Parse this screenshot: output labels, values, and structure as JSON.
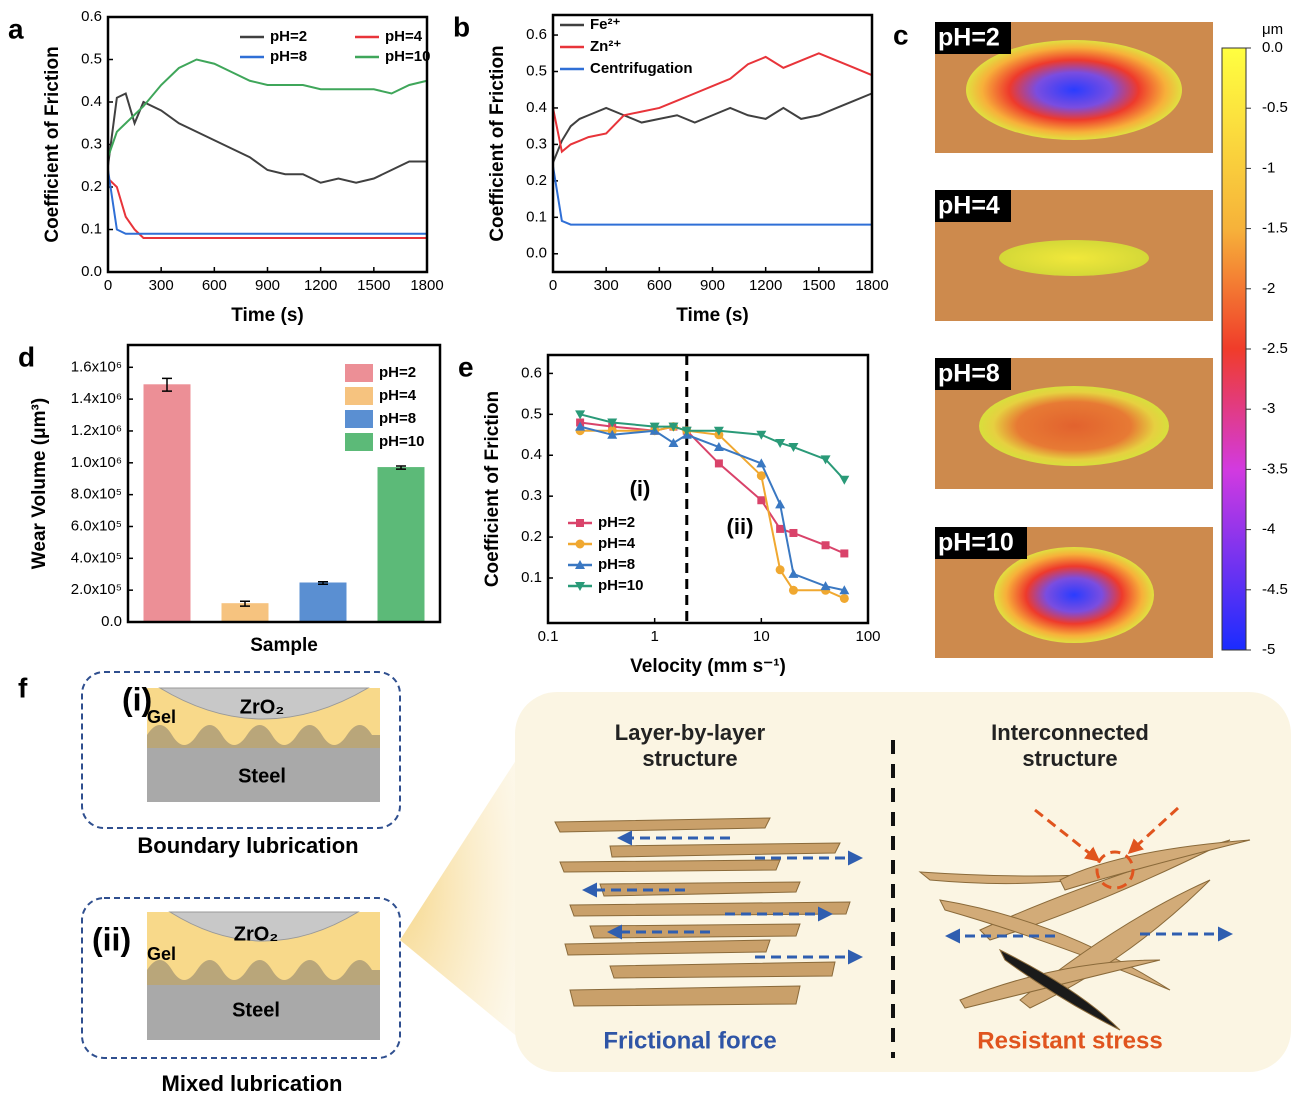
{
  "chart_data": [
    {
      "type": "line",
      "panel": "a",
      "xlabel": "Time (s)",
      "ylabel": "Coefficient  of Friction",
      "xlim": [
        0,
        1800
      ],
      "ylim": [
        0,
        0.6
      ],
      "xticks": [
        0,
        300,
        600,
        900,
        1200,
        1500,
        1800
      ],
      "yticks": [
        {
          "value": 0,
          "label": "0.0"
        },
        0.1,
        0.2,
        0.3,
        0.4,
        0.5,
        0.6
      ],
      "x": [
        0,
        50,
        100,
        150,
        200,
        300,
        400,
        500,
        600,
        700,
        800,
        900,
        1000,
        1100,
        1200,
        1300,
        1400,
        1500,
        1600,
        1700,
        1800
      ],
      "series": [
        {
          "name": "pH=2",
          "color": "#404040",
          "values": [
            0.25,
            0.41,
            0.42,
            0.35,
            0.4,
            0.38,
            0.35,
            0.33,
            0.31,
            0.29,
            0.27,
            0.24,
            0.23,
            0.23,
            0.21,
            0.22,
            0.21,
            0.22,
            0.24,
            0.26,
            0.26
          ]
        },
        {
          "name": "pH=4",
          "color": "#e8343a",
          "values": [
            0.22,
            0.2,
            0.13,
            0.1,
            0.08,
            0.08,
            0.08,
            0.08,
            0.08,
            0.08,
            0.08,
            0.08,
            0.08,
            0.08,
            0.08,
            0.08,
            0.08,
            0.08,
            0.08,
            0.08,
            0.08
          ]
        },
        {
          "name": "pH=8",
          "color": "#2f6fd6",
          "values": [
            0.24,
            0.1,
            0.09,
            0.09,
            0.09,
            0.09,
            0.09,
            0.09,
            0.09,
            0.09,
            0.09,
            0.09,
            0.09,
            0.09,
            0.09,
            0.09,
            0.09,
            0.09,
            0.09,
            0.09,
            0.09
          ]
        },
        {
          "name": "pH=10",
          "color": "#3fa65a",
          "values": [
            0.27,
            0.33,
            0.35,
            0.37,
            0.39,
            0.44,
            0.48,
            0.5,
            0.49,
            0.47,
            0.45,
            0.44,
            0.44,
            0.44,
            0.43,
            0.43,
            0.43,
            0.43,
            0.42,
            0.44,
            0.45
          ]
        }
      ]
    },
    {
      "type": "line",
      "panel": "b",
      "xlabel": "Time (s)",
      "ylabel": "Coefficient  of Friction",
      "xlim": [
        0,
        1800
      ],
      "ylim": [
        -0.05,
        0.655
      ],
      "xticks": [
        0,
        300,
        600,
        900,
        1200,
        1500,
        1800
      ],
      "yticks": [
        {
          "value": 0,
          "label": "0.0"
        },
        0.1,
        0.2,
        0.3,
        0.4,
        0.5,
        0.6
      ],
      "x": [
        0,
        50,
        100,
        150,
        200,
        300,
        400,
        500,
        600,
        700,
        800,
        900,
        1000,
        1100,
        1200,
        1300,
        1400,
        1500,
        1600,
        1700,
        1800
      ],
      "series": [
        {
          "name": "Fe²⁺",
          "color": "#404040",
          "values": [
            0.25,
            0.31,
            0.35,
            0.37,
            0.38,
            0.4,
            0.38,
            0.36,
            0.37,
            0.38,
            0.36,
            0.38,
            0.4,
            0.38,
            0.37,
            0.4,
            0.37,
            0.38,
            0.4,
            0.42,
            0.44
          ]
        },
        {
          "name": "Zn²⁺",
          "color": "#e8343a",
          "values": [
            0.4,
            0.28,
            0.3,
            0.31,
            0.32,
            0.33,
            0.38,
            0.39,
            0.4,
            0.42,
            0.44,
            0.46,
            0.48,
            0.52,
            0.54,
            0.51,
            0.53,
            0.55,
            0.53,
            0.51,
            0.49
          ]
        },
        {
          "name": "Centrifugation",
          "color": "#2f6fd6",
          "values": [
            0.24,
            0.09,
            0.08,
            0.08,
            0.08,
            0.08,
            0.08,
            0.08,
            0.08,
            0.08,
            0.08,
            0.08,
            0.08,
            0.08,
            0.08,
            0.08,
            0.08,
            0.08,
            0.08,
            0.08,
            0.08
          ]
        }
      ]
    },
    {
      "type": "bar",
      "panel": "d",
      "xlabel": "Sample",
      "ylabel": "Wear Volume (μm³)",
      "ylim": [
        0,
        1740000
      ],
      "yticks": [
        {
          "value": 0,
          "label": "0.0"
        },
        {
          "value": 200000,
          "label": "2.0x10⁵"
        },
        {
          "value": 400000,
          "label": "4.0x10⁵"
        },
        {
          "value": 600000,
          "label": "6.0x10⁵"
        },
        {
          "value": 800000,
          "label": "8.0x10⁵"
        },
        {
          "value": 1000000,
          "label": "1.0x10⁶"
        },
        {
          "value": 1200000,
          "label": "1.2x10⁶"
        },
        {
          "value": 1400000,
          "label": "1.4x10⁶"
        },
        {
          "value": 1600000,
          "label": "1.6x10⁶"
        }
      ],
      "categories": [
        "pH=2",
        "pH=4",
        "pH=8",
        "pH=10"
      ],
      "values": [
        1490000,
        115000,
        245000,
        970000
      ],
      "errors": [
        40000,
        15000,
        8000,
        10000
      ],
      "colors": [
        "#ec8f96",
        "#f6c37f",
        "#5a8fd2",
        "#5cba78"
      ]
    },
    {
      "type": "line",
      "panel": "e",
      "xlabel": "Velocity (mm s⁻¹)",
      "ylabel": "Coefficient of Friction",
      "xlog": true,
      "xlim": [
        0.1,
        100
      ],
      "ylim": [
        -0.01,
        0.645
      ],
      "xticks": [
        0.1,
        1,
        10,
        100
      ],
      "yticks": [
        0.1,
        0.2,
        0.3,
        0.4,
        0.5,
        0.6
      ],
      "vline": 2,
      "annotations": [
        "(i)",
        "(ii)"
      ],
      "x": [
        0.2,
        0.4,
        1,
        1.5,
        2,
        4,
        10,
        15,
        20,
        40,
        60
      ],
      "series": [
        {
          "name": "pH=2",
          "color": "#d9436a",
          "marker": "s",
          "values": [
            0.48,
            0.47,
            0.46,
            0.47,
            0.46,
            0.38,
            0.29,
            0.22,
            0.21,
            0.18,
            0.16
          ]
        },
        {
          "name": "pH=4",
          "color": "#f0a830",
          "marker": "o",
          "values": [
            0.46,
            0.46,
            0.46,
            0.47,
            0.46,
            0.45,
            0.35,
            0.12,
            0.07,
            0.07,
            0.05
          ]
        },
        {
          "name": "pH=8",
          "color": "#3a78c2",
          "marker": "^",
          "values": [
            0.47,
            0.45,
            0.46,
            0.43,
            0.45,
            0.42,
            0.38,
            0.28,
            0.11,
            0.08,
            0.07
          ]
        },
        {
          "name": "pH=10",
          "color": "#2a9a78",
          "marker": "v",
          "values": [
            0.5,
            0.48,
            0.47,
            0.47,
            0.46,
            0.46,
            0.45,
            0.43,
            0.42,
            0.39,
            0.34
          ]
        }
      ]
    }
  ],
  "panel_c": {
    "panel": "c",
    "images": [
      "pH=2",
      "pH=4",
      "pH=8",
      "pH=10"
    ],
    "colorbar": {
      "unit": "μm",
      "lim": [
        -5,
        0
      ],
      "ticks": [
        {
          "value": 0,
          "label": "0.0"
        },
        -0.5,
        -1,
        -1.5,
        -2,
        -2.5,
        -3,
        -3.5,
        -4,
        -4.5,
        -5
      ]
    }
  },
  "panel_f": {
    "panel": "f",
    "boundary": {
      "tag": "(i)",
      "ball": "ZrO₂",
      "gel": "Gel",
      "base": "Steel",
      "caption": "Boundary lubrication"
    },
    "mixed": {
      "tag": "(ii)",
      "ball": "ZrO₂",
      "gel": "Gel",
      "base": "Steel",
      "caption": "Mixed lubrication"
    },
    "left_title": "Layer-by-layer structure",
    "right_title": "Interconnected structure",
    "left_caption": "Frictional force",
    "right_caption": "Resistant stress"
  }
}
